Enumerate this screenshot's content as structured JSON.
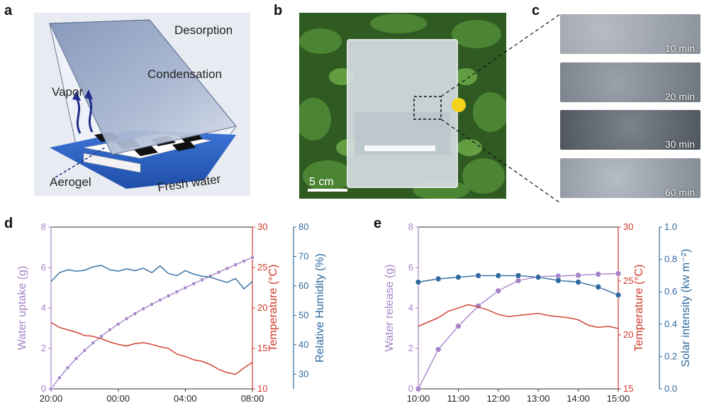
{
  "panels": {
    "a": {
      "letter": "a",
      "labels": {
        "desorption": "Desorption",
        "condensation": "Condensation",
        "vapor": "Vapor",
        "aerogel": "Aerogel",
        "fresh_water": "Fresh water"
      },
      "colors": {
        "bg": "#e6e9f2",
        "water": "#2f67c9",
        "glass": "#8ea2c4",
        "aerogel": "#111111",
        "vapor": "#1f2f8a"
      }
    },
    "b": {
      "letter": "b",
      "scale_label": "5 cm",
      "colors": {
        "leaf": "#3c6e2e",
        "flower": "#f2d31a"
      }
    },
    "c": {
      "letter": "c",
      "times": [
        "10 min",
        "20 min",
        "30 min",
        "60 min"
      ]
    },
    "d": {
      "letter": "d",
      "chart_data": {
        "type": "line",
        "title": "",
        "xlabel": "",
        "x_ticks": [
          "20:00",
          "00:00",
          "04:00",
          "08:00"
        ],
        "x_range_hours": [
          0,
          12
        ],
        "axes": [
          {
            "label": "Water uptake (g)",
            "range": [
              0,
              8
            ],
            "ticks": [
              "0",
              "2",
              "4",
              "6",
              "8"
            ],
            "color": "#a684c9"
          },
          {
            "label": "Temperature (°C)",
            "range": [
              10,
              30
            ],
            "ticks": [
              "10",
              "15",
              "20",
              "25",
              "30"
            ],
            "color": "#d0392b"
          },
          {
            "label": "Relative Humidity (%)",
            "range": [
              25,
              80
            ],
            "ticks": [
              "30",
              "40",
              "50",
              "60",
              "70",
              "80"
            ],
            "color": "#2f6a9e"
          }
        ],
        "series": [
          {
            "name": "Water uptake",
            "axis": 0,
            "markers": true,
            "x": [
              0,
              0.5,
              1,
              1.5,
              2,
              2.5,
              3,
              3.5,
              4,
              4.5,
              5,
              5.5,
              6,
              6.5,
              7,
              7.5,
              8,
              8.5,
              9,
              9.5,
              10,
              10.5,
              11,
              11.5,
              12
            ],
            "y": [
              0,
              0.55,
              1.05,
              1.5,
              1.9,
              2.27,
              2.6,
              2.92,
              3.2,
              3.47,
              3.72,
              3.96,
              4.18,
              4.39,
              4.6,
              4.8,
              5.0,
              5.2,
              5.39,
              5.58,
              5.77,
              5.96,
              6.14,
              6.32,
              6.5
            ]
          },
          {
            "name": "Temperature",
            "axis": 1,
            "markers": false,
            "x": [
              0,
              0.5,
              1,
              1.5,
              2,
              2.5,
              3,
              3.5,
              4,
              4.5,
              5,
              5.5,
              6,
              6.5,
              7,
              7.5,
              8,
              8.5,
              9,
              9.5,
              10,
              10.5,
              11,
              11.5,
              12
            ],
            "y": [
              18.2,
              17.6,
              17.3,
              17.0,
              16.6,
              16.5,
              16.2,
              15.8,
              15.5,
              15.3,
              15.6,
              15.7,
              15.5,
              15.2,
              15.0,
              14.3,
              14.0,
              13.6,
              13.4,
              13.0,
              12.4,
              12.0,
              11.8,
              12.6,
              13.3
            ]
          },
          {
            "name": "Relative Humidity",
            "axis": 2,
            "markers": false,
            "x": [
              0,
              0.5,
              1,
              1.5,
              2,
              2.5,
              3,
              3.5,
              4,
              4.5,
              5,
              5.5,
              6,
              6.5,
              7,
              7.5,
              8,
              8.5,
              9,
              9.5,
              10,
              10.5,
              11,
              11.5,
              12
            ],
            "y": [
              61.5,
              64.5,
              65.5,
              65.0,
              65.3,
              66.5,
              67.0,
              65.5,
              65.0,
              65.8,
              65.2,
              66.0,
              64.5,
              66.8,
              64.2,
              63.5,
              65.2,
              64.0,
              63.3,
              63.0,
              62.0,
              61.2,
              62.5,
              59.0,
              61.5
            ]
          }
        ]
      }
    },
    "e": {
      "letter": "e",
      "chart_data": {
        "type": "line",
        "title": "",
        "xlabel": "",
        "x_ticks": [
          "10:00",
          "11:00",
          "12:00",
          "13:00",
          "14:00",
          "15:00"
        ],
        "x_range_hours": [
          10,
          15
        ],
        "axes": [
          {
            "label": "Water release (g)",
            "range": [
              0,
              8
            ],
            "ticks": [
              "0",
              "2",
              "4",
              "6",
              "8"
            ],
            "color": "#a684c9"
          },
          {
            "label": "Temperature (°C)",
            "range": [
              15,
              30
            ],
            "ticks": [
              "15",
              "20",
              "25",
              "30"
            ],
            "color": "#d0392b"
          },
          {
            "label": "Solar intensity (kw m⁻²)",
            "range": [
              0,
              1.0
            ],
            "ticks": [
              "0.0",
              "0.2",
              "0.4",
              "0.6",
              "0.8",
              "1.0"
            ],
            "color": "#2f6a9e"
          }
        ],
        "series": [
          {
            "name": "Water release",
            "axis": 0,
            "markers": true,
            "x": [
              10,
              10.5,
              11,
              11.5,
              12,
              12.5,
              13,
              13.5,
              14,
              14.5,
              15
            ],
            "y": [
              0,
              1.95,
              3.1,
              4.1,
              4.85,
              5.35,
              5.55,
              5.58,
              5.62,
              5.67,
              5.7
            ]
          },
          {
            "name": "Temperature",
            "axis": 1,
            "markers": false,
            "x": [
              10,
              10.25,
              10.5,
              10.75,
              11,
              11.25,
              11.5,
              11.75,
              12,
              12.25,
              12.5,
              12.75,
              13,
              13.25,
              13.5,
              13.75,
              14,
              14.25,
              14.5,
              14.75,
              15
            ],
            "y": [
              20.8,
              21.2,
              21.6,
              22.2,
              22.5,
              22.8,
              22.6,
              22.3,
              21.9,
              21.7,
              21.8,
              21.9,
              22.0,
              21.8,
              21.7,
              21.6,
              21.4,
              20.9,
              20.7,
              20.8,
              20.6
            ]
          },
          {
            "name": "Solar intensity",
            "axis": 2,
            "markers": true,
            "x": [
              10,
              10.5,
              11,
              11.5,
              12,
              12.5,
              13,
              13.5,
              14,
              14.5,
              15
            ],
            "y": [
              0.66,
              0.68,
              0.69,
              0.7,
              0.7,
              0.7,
              0.69,
              0.67,
              0.66,
              0.63,
              0.58
            ]
          }
        ]
      }
    }
  }
}
